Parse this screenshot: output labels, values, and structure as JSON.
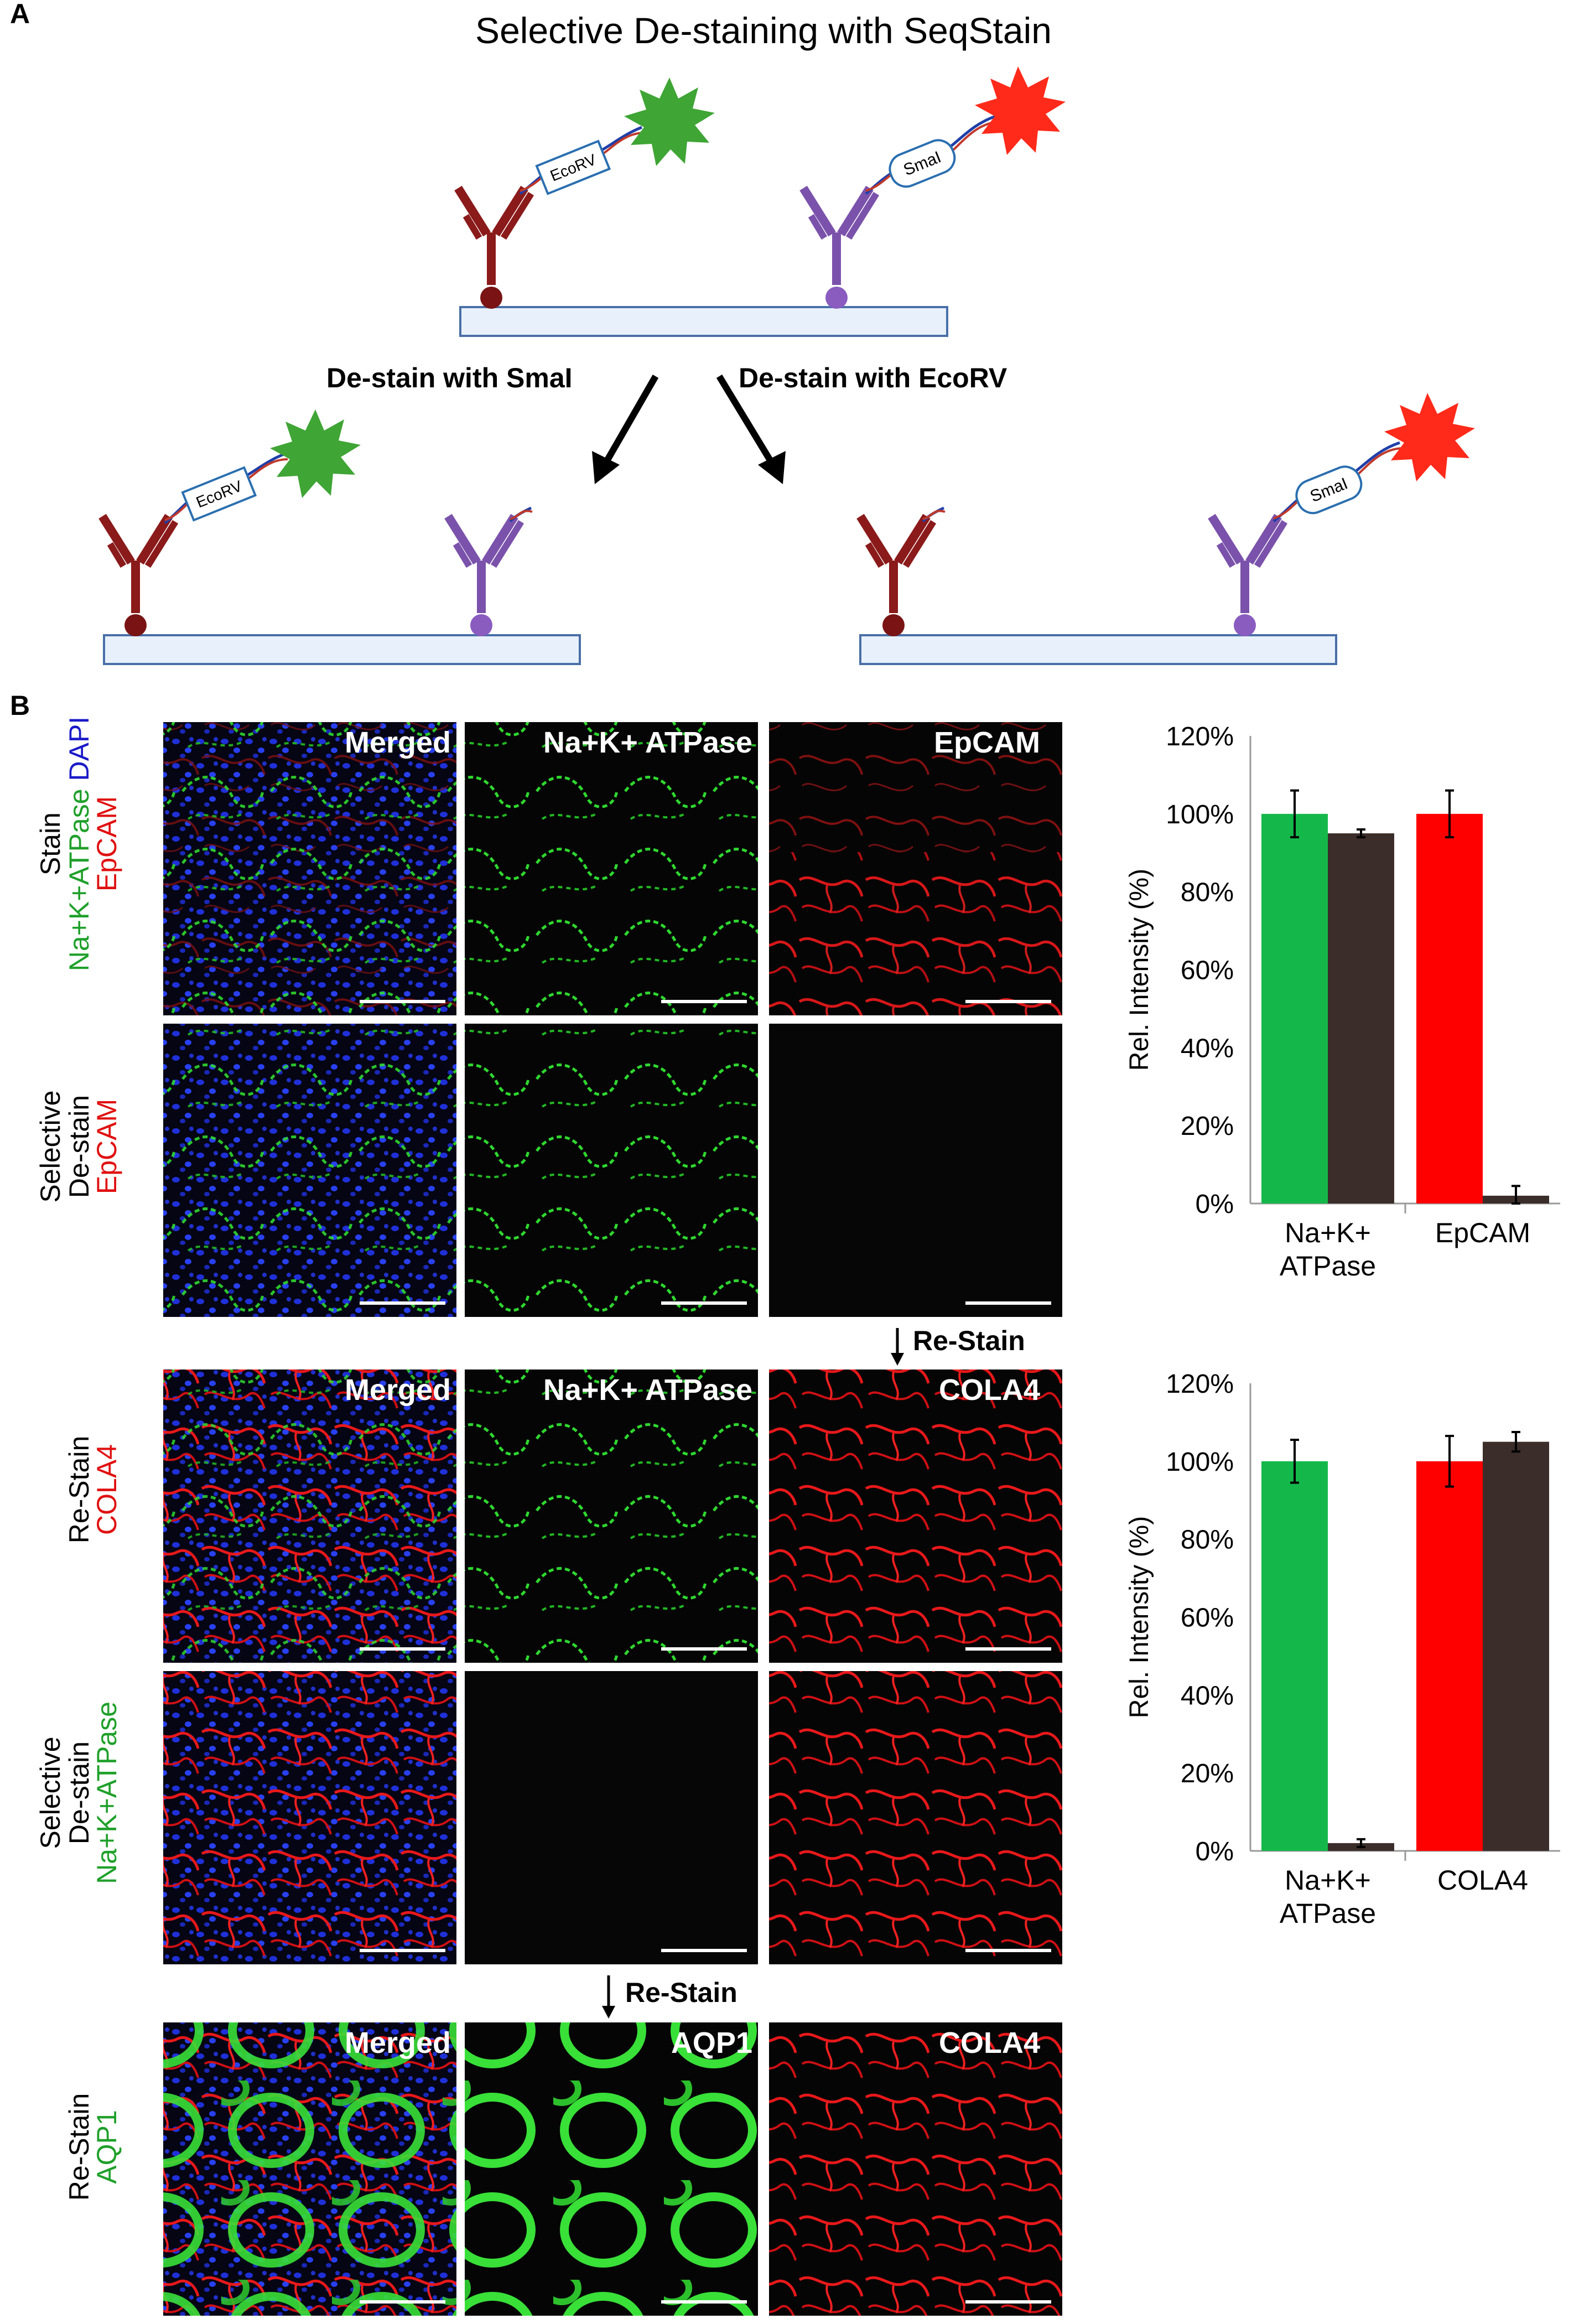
{
  "panel_a": {
    "letter": "A",
    "title": "Selective De-staining with SeqStain",
    "label_left": "De-stain  with SmaI",
    "label_right": "De-stain  with EcoRV",
    "enzyme_ecorv": "EcoRV",
    "enzyme_smai": "SmaI",
    "colors": {
      "antibody_red": "#8b1a1a",
      "antibody_purple": "#7b52ab",
      "dye_green": "#3fa535",
      "dye_red": "#ff2a1a",
      "slide_fill": "#e8f1fb",
      "slide_stroke": "#4a6fa8"
    }
  },
  "panel_b": {
    "letter": "B",
    "row_labels": [
      {
        "black": "Stain",
        "colored": [
          {
            "text": "Na+K+ATPase",
            "color": "#1fa02a"
          },
          {
            "text": "DAPI",
            "color": "#1a1ac8"
          },
          {
            "text": "EpCAM",
            "color": "#e01010"
          }
        ]
      },
      {
        "black": "Selective",
        "black2": "De-stain",
        "colored": [
          {
            "text": "EpCAM",
            "color": "#e01010"
          }
        ]
      },
      {
        "black": "Re-Stain",
        "colored": [
          {
            "text": "COLA4",
            "color": "#e01010"
          }
        ]
      },
      {
        "black": "Selective",
        "black2": "De-stain",
        "colored": [
          {
            "text": "Na+K+ATPase",
            "color": "#1fa02a"
          }
        ]
      },
      {
        "black": "Re-Stain",
        "colored": [
          {
            "text": "AQP1",
            "color": "#1fa02a"
          }
        ]
      }
    ],
    "image_titles": {
      "row1": [
        "Merged",
        "Na+K+ ATPase",
        "EpCAM"
      ],
      "row3": [
        "Merged",
        "Na+K+ ATPase",
        "COLA4"
      ],
      "row5": [
        "Merged",
        "AQP1",
        "COLA4"
      ]
    },
    "restain_arrows": [
      "Re-Stain",
      "Re-Stain"
    ]
  },
  "chart_data": [
    {
      "type": "bar",
      "categories": [
        "Na+K+\nATPase",
        "EpCAM"
      ],
      "ylabel": "Rel. Intensity (%)",
      "ylim": [
        0,
        120
      ],
      "yticks": [
        "0%",
        "20%",
        "40%",
        "60%",
        "80%",
        "100%",
        "120%"
      ],
      "bars": [
        {
          "value": 100,
          "error": 6,
          "color": "#14b84a"
        },
        {
          "value": 95,
          "error": 1,
          "color": "#3b2e2a"
        },
        {
          "value": 100,
          "error": 6,
          "color": "#ff0000"
        },
        {
          "value": 2,
          "error": 2.5,
          "color": "#3b2e2a"
        }
      ]
    },
    {
      "type": "bar",
      "categories": [
        "Na+K+\nATPase",
        "COLA4"
      ],
      "ylabel": "Rel. Intensity (%)",
      "ylim": [
        0,
        120
      ],
      "yticks": [
        "0%",
        "20%",
        "40%",
        "60%",
        "80%",
        "100%",
        "120%"
      ],
      "bars": [
        {
          "value": 100,
          "error": 5.5,
          "color": "#14b84a"
        },
        {
          "value": 2,
          "error": 1,
          "color": "#3b2e2a"
        },
        {
          "value": 100,
          "error": 6.5,
          "color": "#ff0000"
        },
        {
          "value": 105,
          "error": 2.5,
          "color": "#3b2e2a"
        }
      ]
    }
  ]
}
